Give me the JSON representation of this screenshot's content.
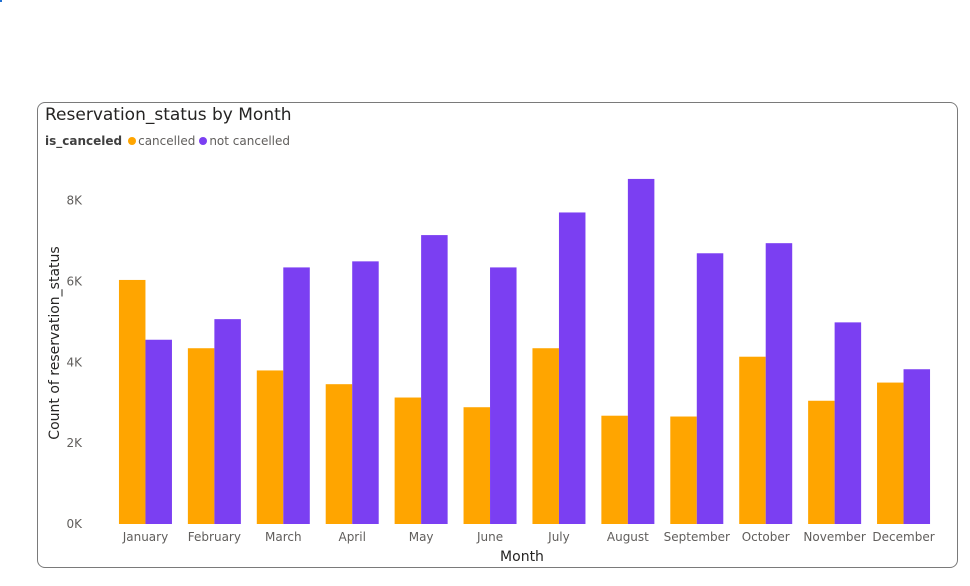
{
  "chart_data": {
    "type": "bar",
    "title": "Reservation_status by Month",
    "xlabel": "Month",
    "ylabel": "Count of reservation_status",
    "ylim": [
      0,
      8600
    ],
    "yticks": [
      0,
      2000,
      4000,
      6000,
      8000
    ],
    "ytick_labels": [
      "0K",
      "2K",
      "4K",
      "6K",
      "8K"
    ],
    "grid": false,
    "legend_title": "is_canceled",
    "legend_position": "top-left",
    "categories": [
      "January",
      "February",
      "March",
      "April",
      "May",
      "June",
      "July",
      "August",
      "September",
      "October",
      "November",
      "December"
    ],
    "series": [
      {
        "name": "cancelled",
        "color": "#FFA500",
        "values": [
          6040,
          4350,
          3800,
          3460,
          3130,
          2890,
          4350,
          2680,
          2660,
          4140,
          3050,
          3500
        ]
      },
      {
        "name": "not cancelled",
        "color": "#7B3FF2",
        "values": [
          4560,
          5070,
          6350,
          6500,
          7150,
          6350,
          7710,
          8540,
          6700,
          6950,
          4990,
          3830
        ]
      }
    ]
  }
}
